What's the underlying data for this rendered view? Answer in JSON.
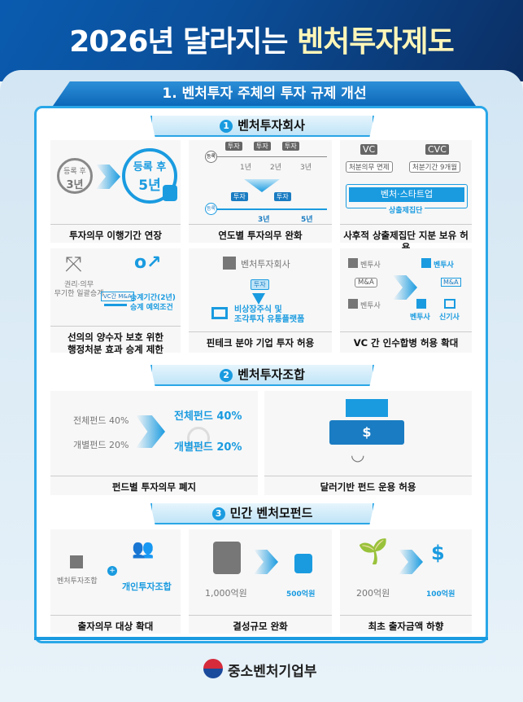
{
  "header": {
    "title_prefix": "2026년 달라지는 ",
    "title_highlight": "벤처투자제도"
  },
  "section1": {
    "title": "1. 벤처투자 주체의 투자 규제 개선"
  },
  "sub1": {
    "num": "1",
    "title": "벤처투자회사",
    "c1": {
      "before_a": "등록 후",
      "before_b": "3년",
      "after_a": "등록 후",
      "after_b": "5년",
      "caption": "투자의무 이행기간 연장"
    },
    "c2": {
      "reg": "등록",
      "invest": "투자",
      "y1": "1년",
      "y2": "2년",
      "y3": "3년",
      "y3b": "3년",
      "y5": "5년",
      "caption": "연도별 투자의무 완화"
    },
    "c3": {
      "vc": "VC",
      "cvc": "CVC",
      "vc_note": "처분의무 면제",
      "cvc_note": "처분기간 9개월",
      "target": "벤처·스타트업",
      "group": "상출제집단",
      "caption": "사후적 상출제집단 지분 보유 허용"
    },
    "c4": {
      "left": "권리·의무\n무기한 일괄승계",
      "tag": "VC간 M&A",
      "right1": "승계기간(2년)",
      "right2": "승계 예외조건",
      "caption1": "선의의 양수자 보호 위한",
      "caption2": "행정처분 효과 승계 제한"
    },
    "c5": {
      "company": "벤처투자회사",
      "invest": "투자",
      "target1": "비상장주식 및",
      "target2": "조각투자 유통플랫폼",
      "caption": "핀테크 분야 기업 투자 허용"
    },
    "c6": {
      "a": "벤투사",
      "b": "벤투사",
      "ma": "M&A",
      "c": "벤투사",
      "d": "벤투사",
      "new": "신기사",
      "caption": "VC 간 인수합병 허용 확대"
    }
  },
  "sub2": {
    "num": "2",
    "title": "벤처투자조합",
    "c1": {
      "total": "전체펀드 40%",
      "indiv": "개별펀드 20%",
      "total_b": "전체펀드 40%",
      "indiv_b": "개별펀드 20%",
      "caption": "펀드별 투자의무 폐지"
    },
    "c2": {
      "caption": "달러기반 펀드 운용 허용"
    }
  },
  "sub3": {
    "num": "3",
    "title": "민간 벤처모펀드",
    "c1": {
      "a": "벤처투자조합",
      "b": "개인투자조합",
      "caption": "출자의무 대상 확대"
    },
    "c2": {
      "from": "1,000억원",
      "to": "500억원",
      "caption": "결성규모 완화"
    },
    "c3": {
      "from": "200억원",
      "to": "100억원",
      "caption": "최초 출자금액 하향"
    }
  },
  "footer": {
    "ministry": "중소벤처기업부"
  },
  "colors": {
    "accent": "#1a9be0",
    "header": "#0b4f9a",
    "highlight": "#fff6b8"
  }
}
